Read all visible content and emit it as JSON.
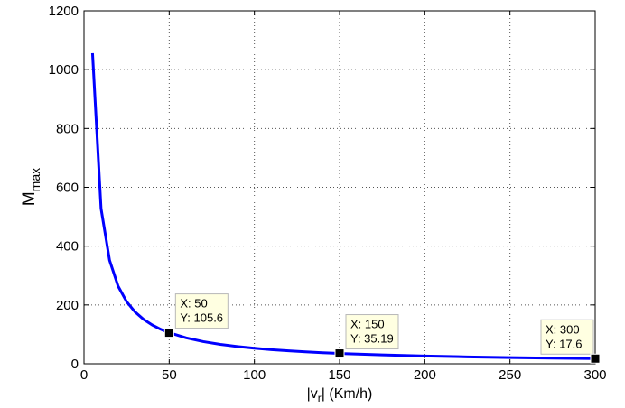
{
  "chart_data": {
    "type": "line",
    "title": "",
    "xlabel": {
      "prefix": "|v",
      "sub": "r",
      "suffix": "| (Km/h)"
    },
    "ylabel": {
      "main": "M",
      "sub": "max"
    },
    "xlim": [
      0,
      300
    ],
    "ylim": [
      0,
      1200
    ],
    "xticks": [
      0,
      50,
      100,
      150,
      200,
      250,
      300
    ],
    "yticks": [
      0,
      200,
      400,
      600,
      800,
      1000,
      1200
    ],
    "grid": true,
    "series": [
      {
        "color": "#0000ff",
        "x": [
          5,
          10,
          15,
          20,
          25,
          30,
          35,
          40,
          45,
          50,
          60,
          70,
          80,
          90,
          100,
          110,
          120,
          130,
          140,
          150,
          175,
          200,
          225,
          250,
          275,
          300
        ],
        "y": [
          1056,
          528,
          352,
          264,
          211.2,
          176,
          150.9,
          132,
          117.3,
          105.6,
          88,
          75.4,
          66,
          58.7,
          52.8,
          48,
          44,
          40.6,
          37.7,
          35.19,
          30.2,
          26.4,
          23.5,
          21.1,
          19.2,
          17.6
        ]
      }
    ],
    "datatips": [
      {
        "x": 50,
        "y": 105.6,
        "line1": "X: 50",
        "line2": "Y: 105.6"
      },
      {
        "x": 150,
        "y": 35.19,
        "line1": "X: 150",
        "line2": "Y: 35.19"
      },
      {
        "x": 300,
        "y": 17.6,
        "line1": "X: 300",
        "line2": "Y: 17.6"
      }
    ]
  }
}
